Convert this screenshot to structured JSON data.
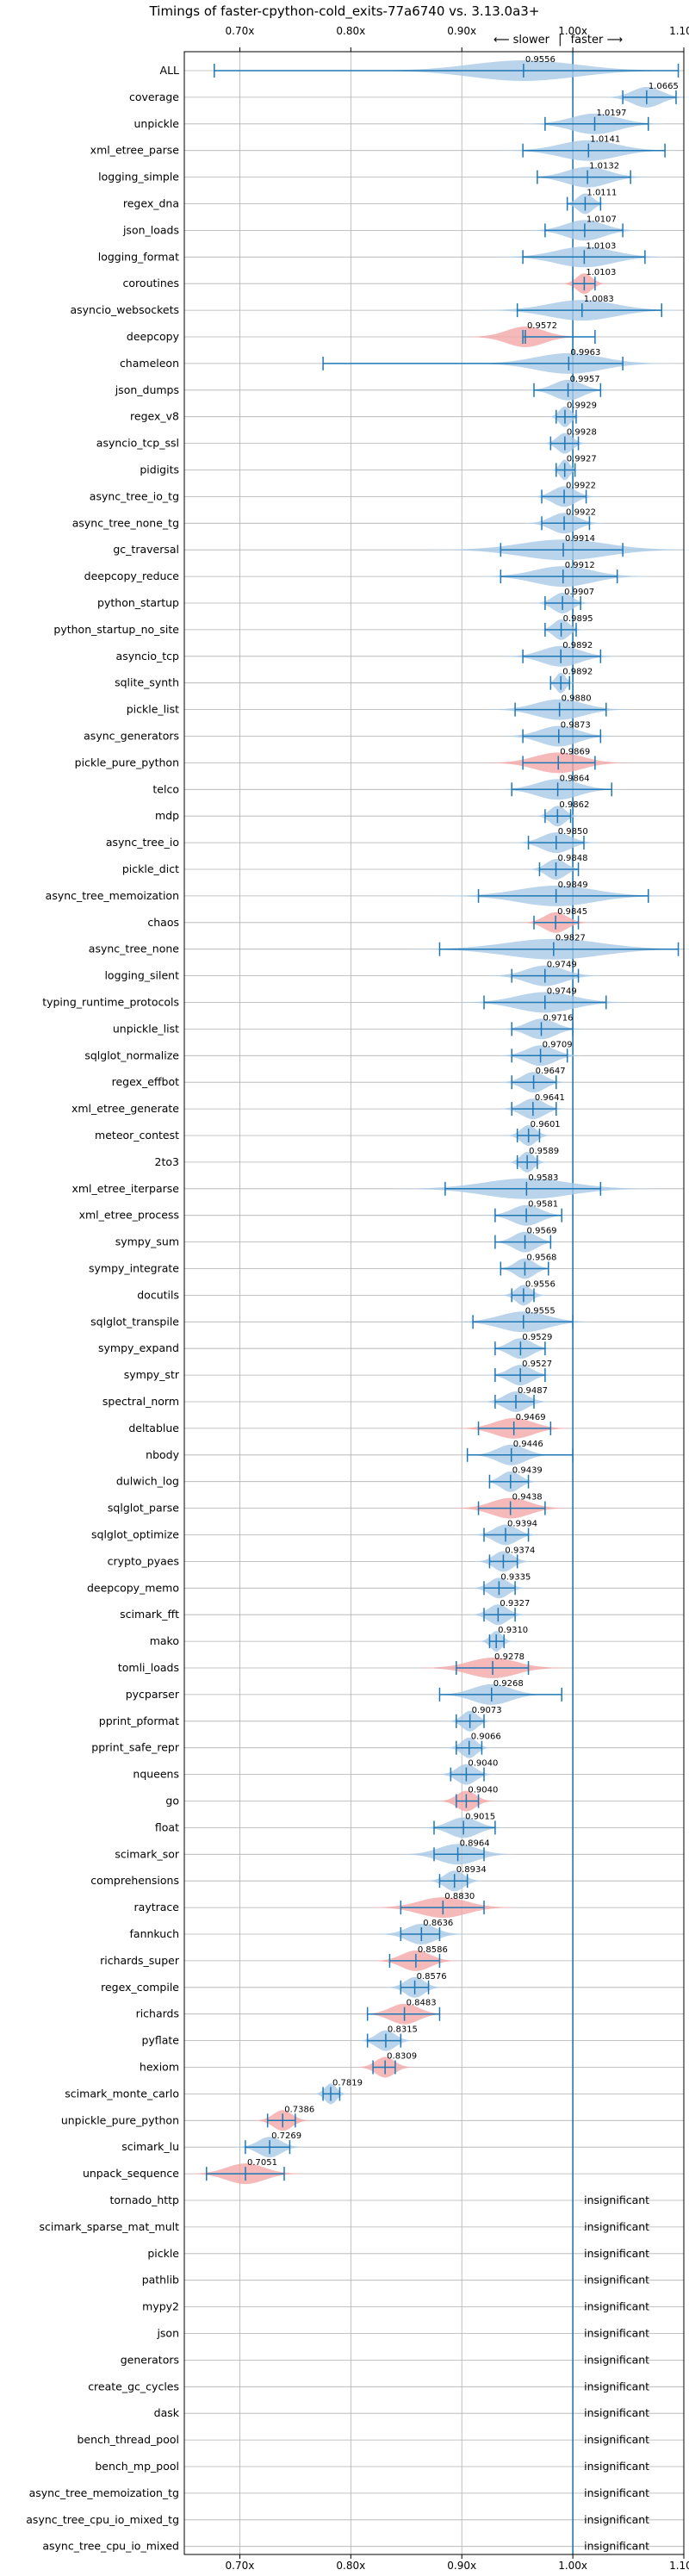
{
  "chart_data": {
    "type": "violin",
    "title": "Timings of faster-cpython-cold_exits-77a6740 vs. 3.13.0a3+",
    "direction_labels": {
      "slower": "⟵ slower",
      "separator": "|",
      "faster": "faster ⟶"
    },
    "xlim": [
      0.65,
      1.1
    ],
    "xticks": [
      0.7,
      0.8,
      0.9,
      1.0,
      1.1
    ],
    "xtick_labels": [
      "0.70x",
      "0.80x",
      "0.90x",
      "1.00x",
      "1.10x"
    ],
    "grid": true,
    "colors": {
      "faster": "#a9c9e6",
      "slower": "#f4a7a8",
      "line": "#1f77b4",
      "grid": "#b0b0b0"
    },
    "insignificant_label": "insignificant",
    "benchmarks": [
      {
        "name": "ALL",
        "value": 0.9556,
        "min": 0.677,
        "max": 1.095,
        "spread": 0.055,
        "color": "blue"
      },
      {
        "name": "coverage",
        "value": 1.0665,
        "min": 1.045,
        "max": 1.093,
        "spread": 0.015,
        "color": "blue"
      },
      {
        "name": "unpickle",
        "value": 1.0197,
        "min": 0.975,
        "max": 1.068,
        "spread": 0.025,
        "color": "blue"
      },
      {
        "name": "xml_etree_parse",
        "value": 1.0141,
        "min": 0.955,
        "max": 1.083,
        "spread": 0.03,
        "color": "blue"
      },
      {
        "name": "logging_simple",
        "value": 1.0132,
        "min": 0.968,
        "max": 1.052,
        "spread": 0.022,
        "color": "blue"
      },
      {
        "name": "regex_dna",
        "value": 1.0111,
        "min": 0.995,
        "max": 1.025,
        "spread": 0.008,
        "color": "blue"
      },
      {
        "name": "json_loads",
        "value": 1.0107,
        "min": 0.975,
        "max": 1.045,
        "spread": 0.02,
        "color": "blue"
      },
      {
        "name": "logging_format",
        "value": 1.0103,
        "min": 0.955,
        "max": 1.065,
        "spread": 0.03,
        "color": "blue"
      },
      {
        "name": "coroutines",
        "value": 1.0103,
        "min": 1.0,
        "max": 1.02,
        "spread": 0.008,
        "color": "red"
      },
      {
        "name": "asyncio_websockets",
        "value": 1.0083,
        "min": 0.95,
        "max": 1.08,
        "spread": 0.035,
        "color": "blue"
      },
      {
        "name": "deepcopy",
        "value": 0.9572,
        "min": 0.955,
        "max": 1.02,
        "spread": 0.02,
        "color": "red"
      },
      {
        "name": "chameleon",
        "value": 0.9963,
        "min": 0.775,
        "max": 1.045,
        "spread": 0.035,
        "color": "blue"
      },
      {
        "name": "json_dumps",
        "value": 0.9957,
        "min": 0.965,
        "max": 1.025,
        "spread": 0.015,
        "color": "blue"
      },
      {
        "name": "regex_v8",
        "value": 0.9929,
        "min": 0.985,
        "max": 1.003,
        "spread": 0.006,
        "color": "blue"
      },
      {
        "name": "asyncio_tcp_ssl",
        "value": 0.9928,
        "min": 0.98,
        "max": 1.005,
        "spread": 0.008,
        "color": "blue"
      },
      {
        "name": "pidigits",
        "value": 0.9927,
        "min": 0.985,
        "max": 1.002,
        "spread": 0.005,
        "color": "blue"
      },
      {
        "name": "async_tree_io_tg",
        "value": 0.9922,
        "min": 0.972,
        "max": 1.012,
        "spread": 0.012,
        "color": "blue"
      },
      {
        "name": "async_tree_none_tg",
        "value": 0.9922,
        "min": 0.972,
        "max": 1.015,
        "spread": 0.014,
        "color": "blue"
      },
      {
        "name": "gc_traversal",
        "value": 0.9914,
        "min": 0.935,
        "max": 1.045,
        "spread": 0.045,
        "color": "blue"
      },
      {
        "name": "deepcopy_reduce",
        "value": 0.9912,
        "min": 0.935,
        "max": 1.04,
        "spread": 0.03,
        "color": "blue"
      },
      {
        "name": "python_startup",
        "value": 0.9907,
        "min": 0.975,
        "max": 1.007,
        "spread": 0.01,
        "color": "blue"
      },
      {
        "name": "python_startup_no_site",
        "value": 0.9895,
        "min": 0.975,
        "max": 1.003,
        "spread": 0.008,
        "color": "blue"
      },
      {
        "name": "asyncio_tcp",
        "value": 0.9892,
        "min": 0.955,
        "max": 1.025,
        "spread": 0.02,
        "color": "blue"
      },
      {
        "name": "sqlite_synth",
        "value": 0.9892,
        "min": 0.98,
        "max": 0.997,
        "spread": 0.005,
        "color": "blue"
      },
      {
        "name": "pickle_list",
        "value": 0.988,
        "min": 0.948,
        "max": 1.03,
        "spread": 0.025,
        "color": "blue"
      },
      {
        "name": "async_generators",
        "value": 0.9873,
        "min": 0.955,
        "max": 1.025,
        "spread": 0.02,
        "color": "blue"
      },
      {
        "name": "pickle_pure_python",
        "value": 0.9869,
        "min": 0.955,
        "max": 1.02,
        "spread": 0.025,
        "color": "red"
      },
      {
        "name": "telco",
        "value": 0.9864,
        "min": 0.945,
        "max": 1.035,
        "spread": 0.022,
        "color": "blue"
      },
      {
        "name": "mdp",
        "value": 0.9862,
        "min": 0.975,
        "max": 0.998,
        "spread": 0.008,
        "color": "blue"
      },
      {
        "name": "async_tree_io",
        "value": 0.985,
        "min": 0.96,
        "max": 1.01,
        "spread": 0.015,
        "color": "blue"
      },
      {
        "name": "pickle_dict",
        "value": 0.9848,
        "min": 0.97,
        "max": 1.005,
        "spread": 0.01,
        "color": "blue"
      },
      {
        "name": "async_tree_memoization",
        "value": 0.9849,
        "min": 0.915,
        "max": 1.068,
        "spread": 0.04,
        "color": "blue"
      },
      {
        "name": "chaos",
        "value": 0.9845,
        "min": 0.965,
        "max": 1.005,
        "spread": 0.012,
        "color": "red"
      },
      {
        "name": "async_tree_none",
        "value": 0.9827,
        "min": 0.88,
        "max": 1.095,
        "spread": 0.05,
        "color": "blue"
      },
      {
        "name": "logging_silent",
        "value": 0.9749,
        "min": 0.945,
        "max": 1.005,
        "spread": 0.02,
        "color": "blue"
      },
      {
        "name": "typing_runtime_protocols",
        "value": 0.9749,
        "min": 0.92,
        "max": 1.03,
        "spread": 0.03,
        "color": "blue"
      },
      {
        "name": "unpickle_list",
        "value": 0.9716,
        "min": 0.945,
        "max": 1.0,
        "spread": 0.015,
        "color": "blue"
      },
      {
        "name": "sqlglot_normalize",
        "value": 0.9709,
        "min": 0.945,
        "max": 0.995,
        "spread": 0.015,
        "color": "blue"
      },
      {
        "name": "regex_effbot",
        "value": 0.9647,
        "min": 0.945,
        "max": 0.985,
        "spread": 0.012,
        "color": "blue"
      },
      {
        "name": "xml_etree_generate",
        "value": 0.9641,
        "min": 0.945,
        "max": 0.985,
        "spread": 0.012,
        "color": "blue"
      },
      {
        "name": "meteor_contest",
        "value": 0.9601,
        "min": 0.95,
        "max": 0.97,
        "spread": 0.008,
        "color": "blue"
      },
      {
        "name": "2to3",
        "value": 0.9589,
        "min": 0.95,
        "max": 0.968,
        "spread": 0.007,
        "color": "blue"
      },
      {
        "name": "xml_etree_iterparse",
        "value": 0.9583,
        "min": 0.885,
        "max": 1.025,
        "spread": 0.045,
        "color": "blue"
      },
      {
        "name": "xml_etree_process",
        "value": 0.9581,
        "min": 0.93,
        "max": 0.99,
        "spread": 0.015,
        "color": "blue"
      },
      {
        "name": "sympy_sum",
        "value": 0.9569,
        "min": 0.93,
        "max": 0.98,
        "spread": 0.012,
        "color": "blue"
      },
      {
        "name": "sympy_integrate",
        "value": 0.9568,
        "min": 0.935,
        "max": 0.978,
        "spread": 0.01,
        "color": "blue"
      },
      {
        "name": "docutils",
        "value": 0.9556,
        "min": 0.945,
        "max": 0.965,
        "spread": 0.008,
        "color": "blue"
      },
      {
        "name": "sqlglot_transpile",
        "value": 0.9555,
        "min": 0.91,
        "max": 1.0,
        "spread": 0.025,
        "color": "blue"
      },
      {
        "name": "sympy_expand",
        "value": 0.9529,
        "min": 0.93,
        "max": 0.975,
        "spread": 0.012,
        "color": "blue"
      },
      {
        "name": "sympy_str",
        "value": 0.9527,
        "min": 0.93,
        "max": 0.975,
        "spread": 0.012,
        "color": "blue"
      },
      {
        "name": "spectral_norm",
        "value": 0.9487,
        "min": 0.93,
        "max": 0.965,
        "spread": 0.012,
        "color": "blue"
      },
      {
        "name": "deltablue",
        "value": 0.9469,
        "min": 0.915,
        "max": 0.98,
        "spread": 0.02,
        "color": "red"
      },
      {
        "name": "nbody",
        "value": 0.9446,
        "min": 0.905,
        "max": 1.0,
        "spread": 0.015,
        "color": "blue"
      },
      {
        "name": "dulwich_log",
        "value": 0.9439,
        "min": 0.925,
        "max": 0.96,
        "spread": 0.01,
        "color": "blue"
      },
      {
        "name": "sqlglot_parse",
        "value": 0.9438,
        "min": 0.915,
        "max": 0.975,
        "spread": 0.02,
        "color": "red"
      },
      {
        "name": "sqlglot_optimize",
        "value": 0.9394,
        "min": 0.92,
        "max": 0.96,
        "spread": 0.012,
        "color": "blue"
      },
      {
        "name": "crypto_pyaes",
        "value": 0.9374,
        "min": 0.925,
        "max": 0.95,
        "spread": 0.01,
        "color": "blue"
      },
      {
        "name": "deepcopy_memo",
        "value": 0.9335,
        "min": 0.92,
        "max": 0.948,
        "spread": 0.01,
        "color": "blue"
      },
      {
        "name": "scimark_fft",
        "value": 0.9327,
        "min": 0.92,
        "max": 0.948,
        "spread": 0.01,
        "color": "blue"
      },
      {
        "name": "mako",
        "value": 0.931,
        "min": 0.925,
        "max": 0.938,
        "spread": 0.006,
        "color": "blue"
      },
      {
        "name": "tomli_loads",
        "value": 0.9278,
        "min": 0.895,
        "max": 0.96,
        "spread": 0.025,
        "color": "red"
      },
      {
        "name": "pycparser",
        "value": 0.9268,
        "min": 0.88,
        "max": 0.99,
        "spread": 0.02,
        "color": "blue"
      },
      {
        "name": "pprint_pformat",
        "value": 0.9073,
        "min": 0.895,
        "max": 0.92,
        "spread": 0.008,
        "color": "blue"
      },
      {
        "name": "pprint_safe_repr",
        "value": 0.9066,
        "min": 0.895,
        "max": 0.918,
        "spread": 0.008,
        "color": "blue"
      },
      {
        "name": "nqueens",
        "value": 0.904,
        "min": 0.89,
        "max": 0.92,
        "spread": 0.01,
        "color": "blue"
      },
      {
        "name": "go",
        "value": 0.904,
        "min": 0.895,
        "max": 0.915,
        "spread": 0.01,
        "color": "red"
      },
      {
        "name": "float",
        "value": 0.9015,
        "min": 0.875,
        "max": 0.93,
        "spread": 0.015,
        "color": "blue"
      },
      {
        "name": "scimark_sor",
        "value": 0.8964,
        "min": 0.875,
        "max": 0.92,
        "spread": 0.02,
        "color": "blue"
      },
      {
        "name": "comprehensions",
        "value": 0.8934,
        "min": 0.88,
        "max": 0.905,
        "spread": 0.01,
        "color": "blue"
      },
      {
        "name": "raytrace",
        "value": 0.883,
        "min": 0.845,
        "max": 0.92,
        "spread": 0.025,
        "color": "red"
      },
      {
        "name": "fannkuch",
        "value": 0.8636,
        "min": 0.845,
        "max": 0.88,
        "spread": 0.015,
        "color": "blue"
      },
      {
        "name": "richards_super",
        "value": 0.8586,
        "min": 0.835,
        "max": 0.88,
        "spread": 0.015,
        "color": "red"
      },
      {
        "name": "regex_compile",
        "value": 0.8576,
        "min": 0.845,
        "max": 0.87,
        "spread": 0.01,
        "color": "blue"
      },
      {
        "name": "richards",
        "value": 0.8483,
        "min": 0.815,
        "max": 0.88,
        "spread": 0.015,
        "color": "red"
      },
      {
        "name": "pyflate",
        "value": 0.8315,
        "min": 0.815,
        "max": 0.845,
        "spread": 0.01,
        "color": "blue"
      },
      {
        "name": "hexiom",
        "value": 0.8309,
        "min": 0.82,
        "max": 0.84,
        "spread": 0.01,
        "color": "red"
      },
      {
        "name": "scimark_monte_carlo",
        "value": 0.7819,
        "min": 0.775,
        "max": 0.79,
        "spread": 0.006,
        "color": "blue"
      },
      {
        "name": "unpickle_pure_python",
        "value": 0.7386,
        "min": 0.725,
        "max": 0.75,
        "spread": 0.01,
        "color": "red"
      },
      {
        "name": "scimark_lu",
        "value": 0.7269,
        "min": 0.705,
        "max": 0.745,
        "spread": 0.012,
        "color": "blue"
      },
      {
        "name": "unpack_sequence",
        "value": 0.7051,
        "min": 0.67,
        "max": 0.74,
        "spread": 0.02,
        "color": "red"
      },
      {
        "name": "tornado_http",
        "insignificant": true
      },
      {
        "name": "scimark_sparse_mat_mult",
        "insignificant": true
      },
      {
        "name": "pickle",
        "insignificant": true
      },
      {
        "name": "pathlib",
        "insignificant": true
      },
      {
        "name": "mypy2",
        "insignificant": true
      },
      {
        "name": "json",
        "insignificant": true
      },
      {
        "name": "generators",
        "insignificant": true
      },
      {
        "name": "create_gc_cycles",
        "insignificant": true
      },
      {
        "name": "dask",
        "insignificant": true
      },
      {
        "name": "bench_thread_pool",
        "insignificant": true
      },
      {
        "name": "bench_mp_pool",
        "insignificant": true
      },
      {
        "name": "async_tree_memoization_tg",
        "insignificant": true
      },
      {
        "name": "async_tree_cpu_io_mixed_tg",
        "insignificant": true
      },
      {
        "name": "async_tree_cpu_io_mixed",
        "insignificant": true
      }
    ]
  }
}
